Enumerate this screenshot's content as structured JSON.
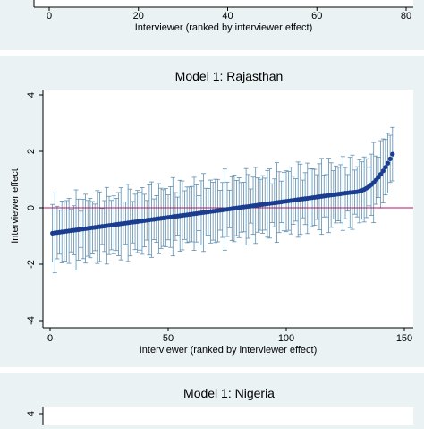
{
  "chart_data": [
    {
      "type": "scatter",
      "title": "",
      "xlabel": "Interviewer (ranked by interviewer effect)",
      "ylabel": "",
      "xlim": [
        0,
        80
      ],
      "x_ticks": [
        "0",
        "20",
        "40",
        "60",
        "80"
      ],
      "partial": "bottom of panel only (cropped)"
    },
    {
      "type": "scatter",
      "title": "Model 1: Rajasthan",
      "xlabel": "Interviewer (ranked by interviewer effect)",
      "ylabel": "Interviewer effect",
      "xlim": [
        0,
        150
      ],
      "ylim": [
        -4,
        4
      ],
      "x_ticks": [
        "0",
        "50",
        "100",
        "150"
      ],
      "y_ticks": [
        "-4",
        "-2",
        "0",
        "2",
        "4"
      ],
      "n_points": 145,
      "point_color": "#1a3d8f",
      "ci_color": "#5f8fb0",
      "reference_line": {
        "y": 0,
        "color": "#b0186b"
      },
      "points_summary": {
        "x_first": 1,
        "x_last": 145,
        "effect_first": -0.9,
        "effect_last": 1.9,
        "ci_halfwidth_typical": 1.2
      }
    },
    {
      "type": "scatter",
      "title": "Model 1: Nigeria",
      "ylabel": "",
      "y_ticks": [
        "4"
      ],
      "partial": "top of panel only (cropped)"
    }
  ]
}
